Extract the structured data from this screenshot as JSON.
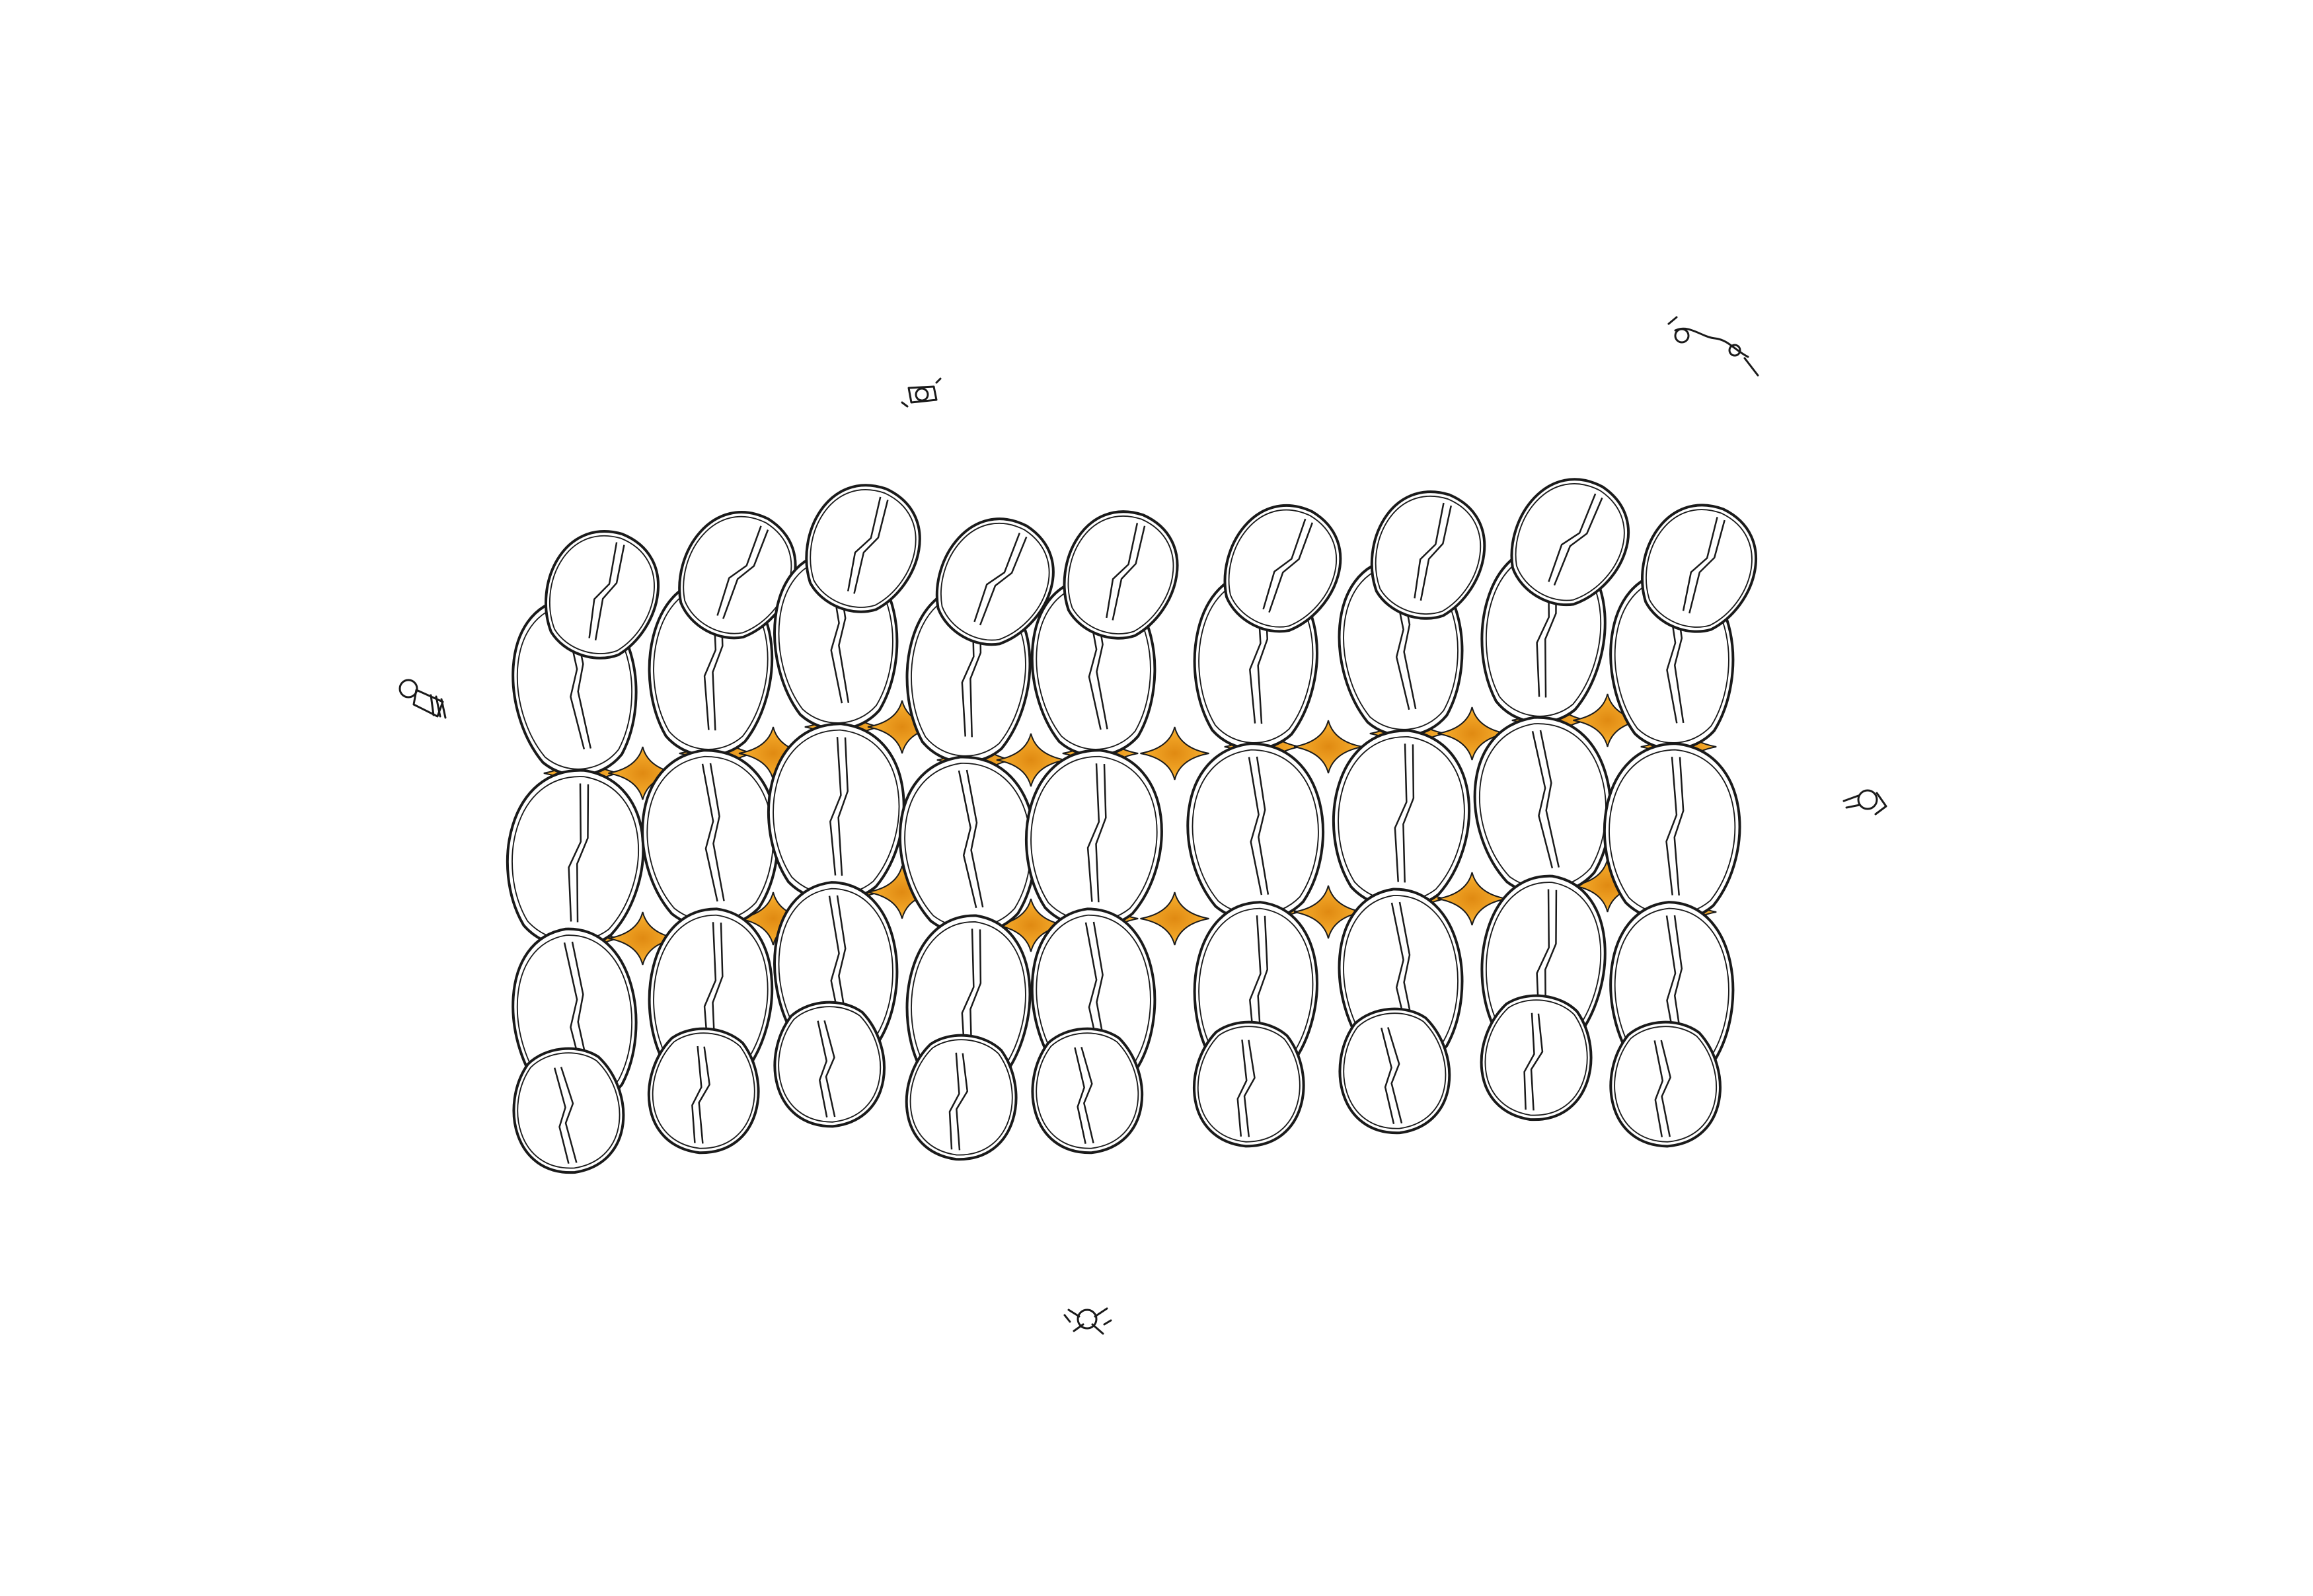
{
  "artwork": {
    "palette": {
      "ink": "#1a1a1a",
      "paper": "#ffffff",
      "petal_fill": "#ffffff",
      "accent_deep": "#e08a12",
      "accent_light": "#f6c256"
    },
    "petal_rows": 3,
    "petal_columns": 9,
    "scale_figures": 6
  }
}
